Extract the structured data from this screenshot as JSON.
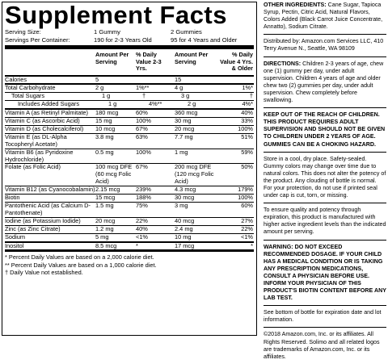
{
  "panel": {
    "title": "Supplement Facts",
    "serving_size_label": "Serving Size:",
    "serving_size_1": "1 Gummy",
    "serving_size_2": "2 Gummies",
    "servings_label": "Servings Per Container:",
    "servings_1": "190 for 2-3 Years Old",
    "servings_2": "95 for 4 Years and Older",
    "col_amount_1": "Amount Per Serving",
    "col_dv_1": "% Daily Value 2-3 Yrs.",
    "col_amount_2": "Amount Per Serving",
    "col_dv_2": "% Daily Value 4 Yrs. & Older",
    "rows": [
      {
        "name": "Calories",
        "a1": "5",
        "d1": "",
        "a2": "15",
        "d2": "",
        "indent": 0
      },
      {
        "name": "Total Carbohydrate",
        "a1": "2 g",
        "d1": "1%**",
        "a2": "4 g",
        "d2": "1%*",
        "indent": 0
      },
      {
        "name": "Total Sugars",
        "a1": "1 g",
        "d1": "†",
        "a2": "3 g",
        "d2": "†",
        "indent": 1
      },
      {
        "name": "Includes Added Sugars",
        "a1": "1 g",
        "d1": "4%**",
        "a2": "2 g",
        "d2": "4%*",
        "indent": 2
      },
      {
        "name": "Vitamin A (as Retinyl Palmitate)",
        "a1": "180 mcg",
        "d1": "60%",
        "a2": "360 mcg",
        "d2": "40%",
        "indent": 0
      },
      {
        "name": "Vitamin C (as Ascorbic Acid)",
        "a1": "15 mg",
        "d1": "100%",
        "a2": "30 mg",
        "d2": "33%",
        "indent": 0
      },
      {
        "name": "Vitamin D (as Cholecalciferol)",
        "a1": "10 mcg",
        "d1": "67%",
        "a2": "20 mcg",
        "d2": "100%",
        "indent": 0
      },
      {
        "name": "Vitamin E (as DL-Alpha Tocopheryl Acetate)",
        "a1": "3.8 mg",
        "d1": "63%",
        "a2": "7.7 mg",
        "d2": "51%",
        "indent": 0
      },
      {
        "name": "Vitamin B6 (as Pyridoxine Hydrochloride)",
        "a1": "0.5 mg",
        "d1": "100%",
        "a2": "1 mg",
        "d2": "59%",
        "indent": 0
      },
      {
        "name": "Folate (as Folic Acid)",
        "a1": "100 mcg DFE (60 mcg Folic Acid)",
        "d1": "67%",
        "a2": "200 mcg DFE (120 mcg Folic Acid)",
        "d2": "50%",
        "indent": 0
      },
      {
        "name": "Vitamin B12 (as Cyanocobalamin)",
        "a1": "2.15 mcg",
        "d1": "239%",
        "a2": "4.3 mcg",
        "d2": "179%",
        "indent": 0
      },
      {
        "name": "Biotin",
        "a1": "15 mcg",
        "d1": "188%",
        "a2": "30 mcg",
        "d2": "100%",
        "indent": 0
      },
      {
        "name": "Pantothenic Acid (as Calcium D-Pantothenate)",
        "a1": "1.5 mg",
        "d1": "75%",
        "a2": "3 mg",
        "d2": "60%",
        "indent": 0
      },
      {
        "name": "Iodine (as Potassium Iodide)",
        "a1": "20 mcg",
        "d1": "22%",
        "a2": "40 mcg",
        "d2": "27%",
        "indent": 0
      },
      {
        "name": "Zinc (as Zinc Citrate)",
        "a1": "1.2 mg",
        "d1": "40%",
        "a2": "2.4 mg",
        "d2": "22%",
        "indent": 0
      },
      {
        "name": "Sodium",
        "a1": "5 mg",
        "d1": "<1%",
        "a2": "10 mg",
        "d2": "<1%",
        "indent": 0
      },
      {
        "name": "Inositol",
        "a1": "8.5 mcg",
        "d1": "*",
        "a2": "17 mcg",
        "d2": "*",
        "indent": 0
      }
    ],
    "foot_1": "* Percent Daily Values are based on a 2,000 calorie diet.",
    "foot_2": "** Percent Daily Values are based on a 1,000 calorie diet.",
    "foot_3": "† Daily Value not established."
  },
  "right": {
    "ingredients_label": "OTHER INGREDIENTS:",
    "ingredients": "Cane Sugar, Tapioca Syrup, Pectin, Citric Acid, Natural Flavors, Colors Added (Black Carrot Juice Concentrate, Annatto), Sodium Citrate.",
    "distributor": "Distributed by: Amazon.com Services LLC, 410 Terry Avenue N., Seattle, WA 98109",
    "directions_label": "DIRECTIONS:",
    "directions": "Children 2-3 years of age, chew one (1) gummy per day, under adult supervision. Children 4 years of age and older chew two (2) gummies per day, under adult supervision. Chew completely before swallowing.",
    "keep_out": "KEEP OUT OF THE REACH OF CHILDREN. THIS PRODUCT REQUIRES ADULT SUPERVISION AND SHOULD NOT BE GIVEN TO CHILDREN UNDER 2 YEARS OF AGE. GUMMIES CAN BE A CHOKING HAZARD.",
    "storage": "Store in a cool, dry place. Safety-sealed. Gummy colors may change over time due to natural colors. This does not alter the potency of the product. Any clouding of bottle is normal. For your protection, do not use if printed seal under cap is cut, torn, or missing.",
    "quality": "To ensure quality and potency through expiration, this product is manufactured with higher active ingredient levels than the indicated amount per serving.",
    "warning": "WARNING: DO NOT EXCEED RECOMMENDED DOSAGE. IF YOUR CHILD HAS A MEDICAL CONDITION OR IS TAKING ANY PRESCRIPTION MEDICATIONS, CONSULT A PHYSICIAN BEFORE USE. INFORM YOUR PHYSICIAN OF THIS PRODUCT'S BIOTIN CONTENT BEFORE ANY LAB TEST.",
    "expiration": "See bottom of bottle for expiration date and lot information.",
    "copyright": "©2018 Amazon.com, Inc. or its affiliates. All Rights Reserved. Solimo and all related logos are trademarks of Amazon.com, Inc. or its affiliates."
  }
}
